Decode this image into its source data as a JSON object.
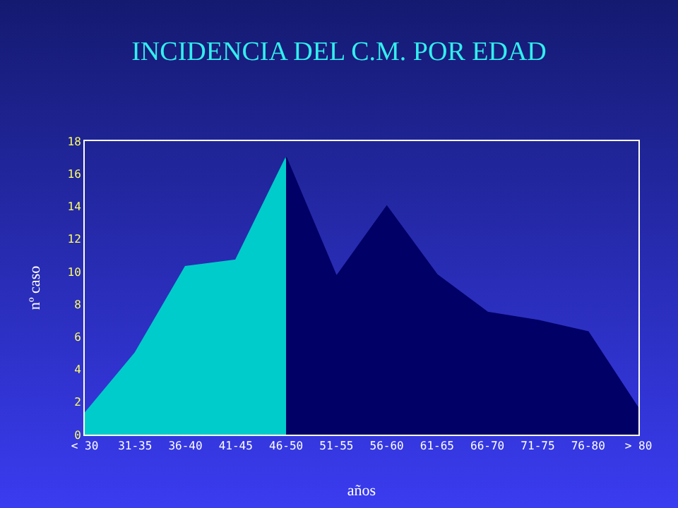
{
  "chart_data": {
    "type": "area",
    "title": "INCIDENCIA DEL C.M. POR EDAD",
    "xlabel": "años",
    "ylabel": "nº caso",
    "categories": [
      "< 30",
      "31-35",
      "36-40",
      "41-45",
      "46-50",
      "51-55",
      "56-60",
      "61-65",
      "66-70",
      "71-75",
      "76-80",
      "> 80"
    ],
    "series": [
      {
        "color": "#00cccc",
        "values": [
          1.3,
          5,
          10.3,
          10.7,
          17,
          null,
          null,
          null,
          null,
          null,
          null,
          null
        ]
      },
      {
        "color": "#000066",
        "values": [
          null,
          null,
          null,
          null,
          17,
          9.7,
          14,
          9.8,
          7.5,
          7,
          6.3,
          1.6
        ]
      }
    ],
    "ylim": [
      0,
      18
    ],
    "yticks": [
      0,
      2,
      4,
      6,
      8,
      10,
      12,
      14,
      16,
      18
    ],
    "grid": false
  }
}
